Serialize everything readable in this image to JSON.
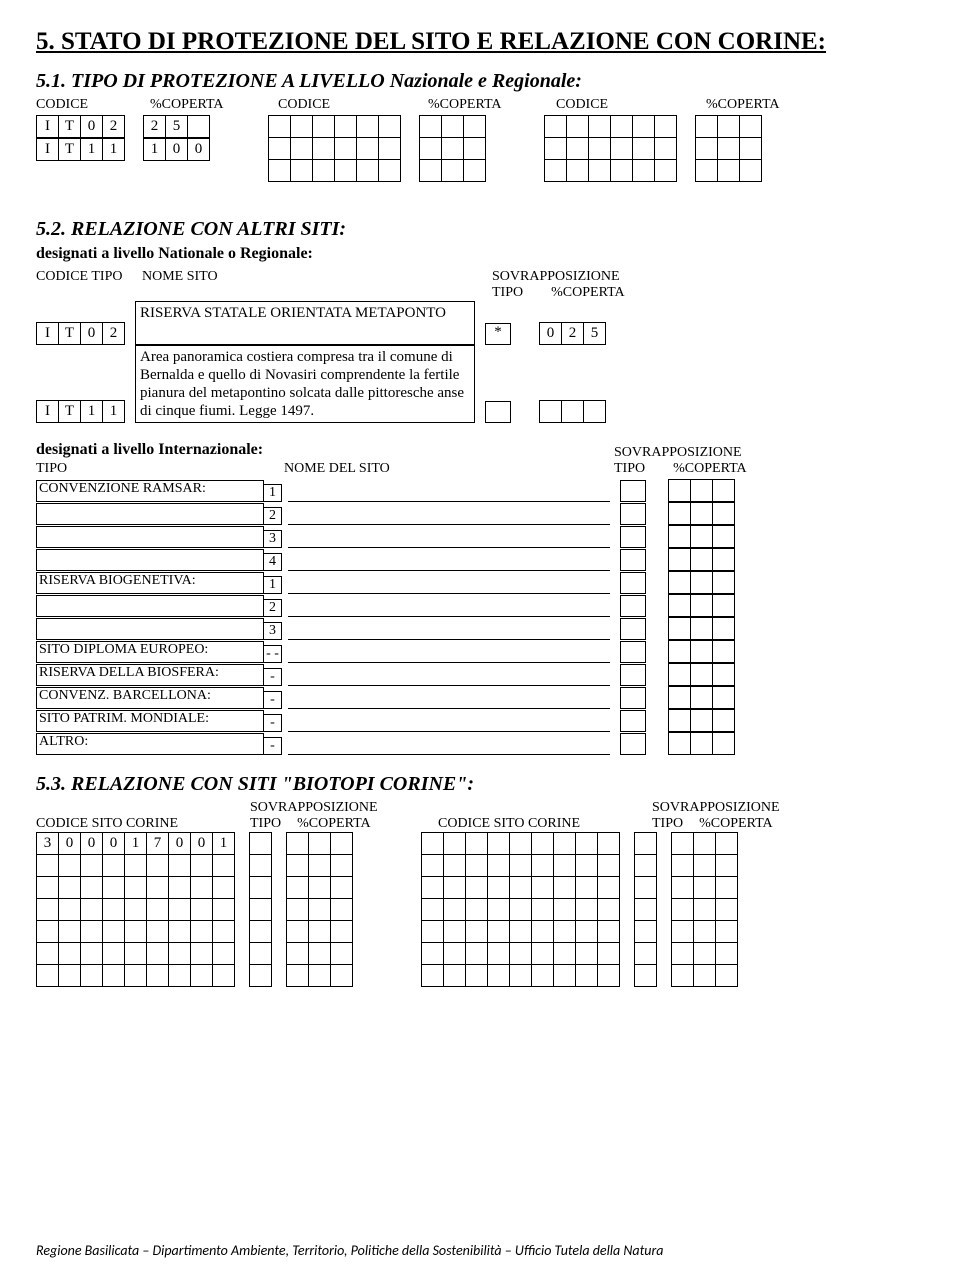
{
  "title_main": "5. STATO DI PROTEZIONE DEL SITO E RELAZIONE CON CORINE:",
  "sec51": {
    "title": "5.1. TIPO DI PROTEZIONE A LIVELLO Nazionale e Regionale:",
    "header_codice": "CODICE",
    "header_coperta": "%COPERTA",
    "rows": [
      {
        "codice": [
          "I",
          "T",
          "0",
          "2"
        ],
        "coperta": [
          "2",
          "5",
          ""
        ]
      },
      {
        "codice": [
          "I",
          "T",
          "1",
          "1"
        ],
        "coperta": [
          "1",
          "0",
          "0"
        ]
      }
    ]
  },
  "sec52": {
    "title": "5.2. RELAZIONE CON ALTRI SITI:",
    "subtitle": "designati a livello Nationale o Regionale:",
    "hdr_codice": "CODICE TIPO",
    "hdr_nome": "NOME SITO",
    "hdr_sovr": "SOVRAPPOSIZIONE",
    "hdr_tipo": "TIPO",
    "hdr_coperta": "%COPERTA",
    "rows": [
      {
        "codice": [
          "I",
          "T",
          "0",
          "2"
        ],
        "nome": "RISERVA STATALE ORIENTATA METAPONTO",
        "tipo": "*",
        "coperta": [
          "0",
          "2",
          "5"
        ]
      },
      {
        "codice": [
          "I",
          "T",
          "1",
          "1"
        ],
        "nome": "Area panoramica costiera compresa tra il comune di Bernalda e quello di Novasiri comprendente la fertile pianura del metapontino solcata dalle pittoresche anse di cinque fiumi. Legge 1497.",
        "tipo": "",
        "coperta": [
          "",
          "",
          ""
        ]
      }
    ],
    "intl_subtitle": "designati a livello Internazionale:",
    "intl_hdr_tipo": "TIPO",
    "intl_hdr_nome": "NOME DEL SITO",
    "intl_rows": [
      {
        "label": "CONVENZIONE RAMSAR:",
        "nums": [
          "1",
          "2",
          "3",
          "4"
        ]
      },
      {
        "label": "RISERVA BIOGENETIVA:",
        "nums": [
          "1",
          "2",
          "3"
        ]
      },
      {
        "label": "SITO DIPLOMA EUROPEO:",
        "nums": [
          "- -"
        ]
      },
      {
        "label": "RISERVA DELLA BIOSFERA:",
        "nums": [
          "-"
        ]
      },
      {
        "label": "CONVENZ. BARCELLONA:",
        "nums": [
          "-"
        ]
      },
      {
        "label": "SITO PATRIM. MONDIALE:",
        "nums": [
          "-"
        ]
      },
      {
        "label": "ALTRO:",
        "nums": [
          "-"
        ]
      }
    ]
  },
  "sec53": {
    "title": "5.3. RELAZIONE CON SITI \"BIOTOPI CORINE\":",
    "hdr_codice": "CODICE SITO CORINE",
    "hdr_sovr": "SOVRAPPOSIZIONE",
    "hdr_tipo": "TIPO",
    "hdr_coperta": "%COPERTA",
    "first_row": [
      "3",
      "0",
      "0",
      "0",
      "1",
      "7",
      "0",
      "0",
      "1"
    ]
  },
  "footer": "Regione Basilicata – Dipartimento Ambiente, Territorio, Politiche della Sostenibilità – Ufficio Tutela della Natura"
}
